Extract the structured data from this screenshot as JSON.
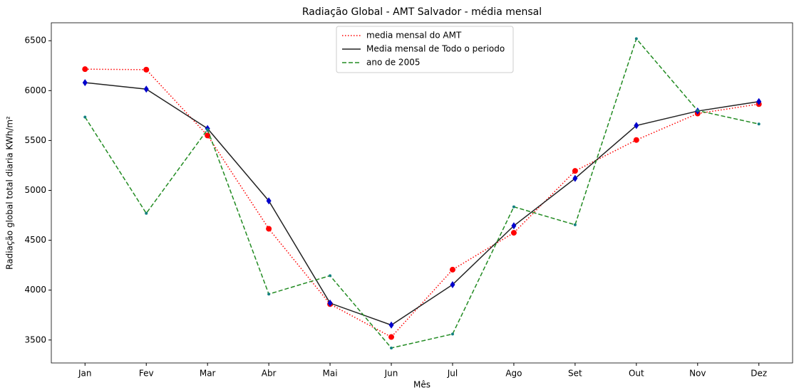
{
  "chart_data": {
    "type": "line",
    "title": "Radiação Global - AMT Salvador - média mensal",
    "xlabel": "Mês",
    "ylabel": "Radiação global total diaria KWh/m²",
    "categories": [
      "Jan",
      "Fev",
      "Mar",
      "Abr",
      "Mai",
      "Jun",
      "Jul",
      "Ago",
      "Set",
      "Out",
      "Nov",
      "Dez"
    ],
    "series": [
      {
        "name": "media mensal do AMT",
        "color": "#ff0000",
        "linestyle": "dotted",
        "marker": "circle",
        "marker_color": "#ff0000",
        "values": [
          6215,
          6210,
          5550,
          4615,
          3860,
          3530,
          4205,
          4575,
          5195,
          5505,
          5770,
          5865
        ]
      },
      {
        "name": "Media mensal de Todo o periodo",
        "color": "#222222",
        "linestyle": "solid",
        "marker": "diamond",
        "marker_color": "#0000cc",
        "values": [
          6080,
          6015,
          5620,
          4895,
          3870,
          3650,
          4055,
          4645,
          5120,
          5650,
          5795,
          5890
        ]
      },
      {
        "name": "ano de 2005",
        "color": "#228b22",
        "linestyle": "dashed",
        "marker": "dot",
        "marker_color": "#138080",
        "values": [
          5735,
          4770,
          5610,
          3960,
          4145,
          3420,
          3560,
          4835,
          4655,
          6520,
          5800,
          5665
        ]
      }
    ],
    "ylim": [
      3270,
      6680
    ],
    "yticks": [
      3500,
      4000,
      4500,
      5000,
      5500,
      6000,
      6500
    ],
    "legend": "upper center"
  }
}
